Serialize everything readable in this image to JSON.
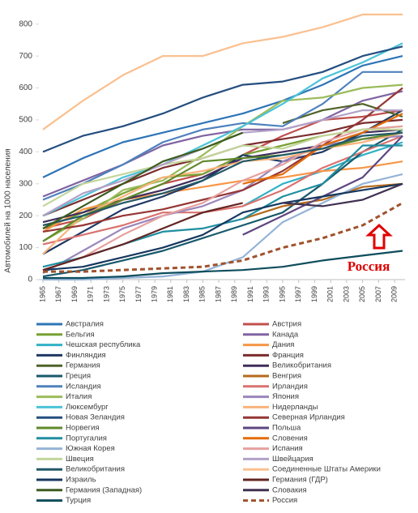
{
  "chart_data": {
    "type": "line",
    "y_label": "Автомобилей на 1000 населения",
    "annotation": "Россия",
    "x": [
      1965,
      1970,
      1975,
      1980,
      1985,
      1990,
      1995,
      2000,
      2005,
      2010
    ],
    "xlim": [
      1965,
      2010
    ],
    "xticks": [
      1965,
      1967,
      1969,
      1971,
      1973,
      1975,
      1977,
      1979,
      1981,
      1983,
      1985,
      1987,
      1989,
      1991,
      1993,
      1995,
      1997,
      1999,
      2001,
      2003,
      2005,
      2007,
      2009
    ],
    "ylim": [
      0,
      850
    ],
    "yticks": [
      0,
      100,
      200,
      300,
      400,
      500,
      600,
      700,
      800
    ],
    "series": [
      {
        "name": "Австралия",
        "color": "#2e75b6",
        "values": [
          320,
          380,
          430,
          460,
          490,
          520,
          560,
          610,
          670,
          700
        ]
      },
      {
        "name": "Австрия",
        "color": "#c0504d",
        "values": [
          160,
          190,
          250,
          300,
          330,
          390,
          450,
          500,
          510,
          530
        ]
      },
      {
        "name": "Бельгия",
        "color": "#77a033",
        "values": [
          160,
          210,
          270,
          320,
          330,
          390,
          420,
          450,
          470,
          480
        ]
      },
      {
        "name": "Канада",
        "color": "#8064a2",
        "values": [
          260,
          310,
          360,
          420,
          450,
          470,
          470,
          500,
          560,
          590
        ]
      },
      {
        "name": "Чешская республика",
        "color": "#31b0c6",
        "values": [
          null,
          null,
          null,
          null,
          null,
          230,
          300,
          340,
          390,
          430
        ]
      },
      {
        "name": "Дания",
        "color": "#f79646",
        "values": [
          150,
          220,
          250,
          270,
          290,
          310,
          320,
          340,
          350,
          370
        ]
      },
      {
        "name": "Финляндия",
        "color": "#1f3864",
        "values": [
          80,
          150,
          220,
          260,
          310,
          390,
          370,
          400,
          460,
          530
        ]
      },
      {
        "name": "Франция",
        "color": "#7b2c2c",
        "values": [
          200,
          250,
          300,
          350,
          380,
          420,
          440,
          460,
          490,
          500
        ]
      },
      {
        "name": "Германия",
        "color": "#4f6228",
        "values": [
          null,
          null,
          null,
          null,
          null,
          null,
          490,
          530,
          550,
          510
        ]
      },
      {
        "name": "Великобритания",
        "color": "#3f2d5c",
        "values": [
          180,
          210,
          250,
          280,
          320,
          380,
          400,
          420,
          460,
          470
        ]
      },
      {
        "name": "Греция",
        "color": "#17596b",
        "values": [
          10,
          30,
          60,
          90,
          130,
          170,
          210,
          300,
          400,
          470
        ]
      },
      {
        "name": "Венгрия",
        "color": "#b46a1c",
        "values": [
          null,
          null,
          null,
          null,
          null,
          190,
          230,
          250,
          290,
          300
        ]
      },
      {
        "name": "Исландия",
        "color": "#4f81bd",
        "values": [
          250,
          300,
          360,
          430,
          470,
          490,
          480,
          550,
          650,
          650
        ]
      },
      {
        "name": "Ирландия",
        "color": "#d9726f",
        "values": [
          110,
          140,
          170,
          210,
          210,
          230,
          280,
          350,
          400,
          450
        ]
      },
      {
        "name": "Италия",
        "color": "#9bbb59",
        "values": [
          120,
          190,
          280,
          310,
          390,
          480,
          560,
          570,
          600,
          610
        ]
      },
      {
        "name": "Япония",
        "color": "#9a86bb",
        "values": [
          20,
          90,
          160,
          200,
          230,
          280,
          370,
          420,
          440,
          450
        ]
      },
      {
        "name": "Люксембург",
        "color": "#4bc3d8",
        "values": [
          200,
          260,
          320,
          360,
          420,
          480,
          550,
          630,
          680,
          740
        ]
      },
      {
        "name": "Нидерланды",
        "color": "#f9b37a",
        "values": [
          80,
          200,
          260,
          320,
          340,
          370,
          380,
          410,
          430,
          460
        ]
      },
      {
        "name": "Новая Зеландия",
        "color": "#244e7f",
        "values": [
          400,
          450,
          480,
          520,
          570,
          610,
          620,
          650,
          700,
          730
        ]
      },
      {
        "name": "Северная Ирландия",
        "color": "#943634",
        "values": [
          150,
          170,
          200,
          220,
          250,
          280,
          340,
          420,
          500,
          600
        ]
      },
      {
        "name": "Норвегия",
        "color": "#5f8a2b",
        "values": [
          120,
          200,
          250,
          300,
          370,
          380,
          390,
          410,
          440,
          460
        ]
      },
      {
        "name": "Польша",
        "color": "#5c4680",
        "values": [
          null,
          null,
          null,
          null,
          null,
          140,
          200,
          260,
          320,
          450
        ]
      },
      {
        "name": "Португалия",
        "color": "#1f8ea0",
        "values": [
          40,
          70,
          110,
          150,
          160,
          190,
          260,
          300,
          420,
          420
        ]
      },
      {
        "name": "Словения",
        "color": "#e36c09",
        "values": [
          null,
          null,
          null,
          null,
          null,
          300,
          330,
          420,
          460,
          520
        ]
      },
      {
        "name": "Южная Корея",
        "color": "#95b3d7",
        "values": [
          0,
          0,
          5,
          10,
          25,
          70,
          180,
          240,
          300,
          330
        ]
      },
      {
        "name": "Испания",
        "color": "#e6a19f",
        "values": [
          30,
          70,
          140,
          200,
          240,
          310,
          360,
          430,
          470,
          480
        ]
      },
      {
        "name": "Швеция",
        "color": "#c3d69b",
        "values": [
          230,
          300,
          330,
          360,
          380,
          420,
          410,
          450,
          470,
          470
        ]
      },
      {
        "name": "Швейцария",
        "color": "#b2a1c7",
        "values": [
          200,
          270,
          310,
          360,
          410,
          460,
          470,
          500,
          530,
          530
        ]
      },
      {
        "name": "Великобритания",
        "color": "#215968",
        "values": [
          170,
          200,
          240,
          270,
          310,
          370,
          390,
          410,
          450,
          460
        ]
      },
      {
        "name": "Соединенные Штаты Америки",
        "color": "#fac090",
        "values": [
          470,
          560,
          640,
          700,
          700,
          740,
          760,
          790,
          830,
          830
        ]
      },
      {
        "name": "Израиль",
        "color": "#17375e",
        "values": [
          30,
          40,
          70,
          100,
          140,
          210,
          240,
          260,
          280,
          300
        ]
      },
      {
        "name": "Германия (ГДР)",
        "color": "#632523",
        "values": [
          30,
          70,
          110,
          160,
          210,
          240,
          null,
          null,
          null,
          null
        ]
      },
      {
        "name": "Германия (Западная)",
        "color": "#3d5c1e",
        "values": [
          160,
          230,
          300,
          370,
          410,
          460,
          null,
          null,
          null,
          null
        ]
      },
      {
        "name": "Словакия",
        "color": "#403151",
        "values": [
          null,
          null,
          null,
          null,
          null,
          null,
          240,
          230,
          250,
          300
        ]
      },
      {
        "name": "Турция",
        "color": "#0e4d5c",
        "values": [
          5,
          5,
          10,
          20,
          25,
          30,
          40,
          60,
          75,
          90
        ]
      },
      {
        "name": "Россия",
        "color": "#a0522d",
        "style": "dashed",
        "values": [
          25,
          25,
          30,
          35,
          40,
          60,
          100,
          130,
          170,
          240
        ]
      }
    ]
  }
}
